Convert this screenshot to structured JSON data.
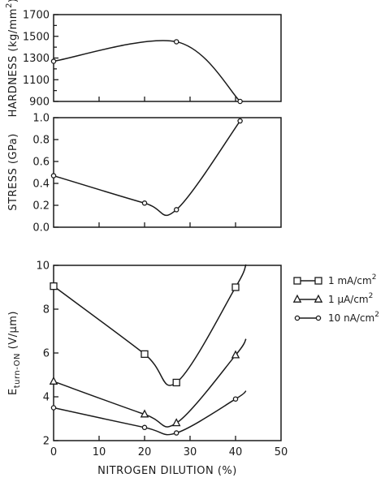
{
  "chart_data": [
    {
      "type": "line",
      "ylabel": "HARDNESS (kg/mm",
      "ylabel_sup": "2",
      "ylabel_close": ")",
      "ylim": [
        900,
        1700
      ],
      "yticks": [
        "900",
        "1100",
        "1300",
        "1500",
        "1700"
      ],
      "ytick_values": [
        900,
        1100,
        1300,
        1500,
        1700
      ],
      "xlim": [
        0,
        50
      ],
      "series": [
        {
          "marker": "circle",
          "points": [
            [
              0,
              1270
            ],
            [
              27,
              1450
            ],
            [
              41,
              900
            ]
          ]
        }
      ]
    },
    {
      "type": "line",
      "ylabel": "STRESS (GPa)",
      "ylim": [
        0.0,
        1.0
      ],
      "yticks": [
        "0.0",
        "0.2",
        "0.4",
        "0.6",
        "0.8",
        "1.0"
      ],
      "ytick_values": [
        0.0,
        0.2,
        0.4,
        0.6,
        0.8,
        1.0
      ],
      "xlim": [
        0,
        50
      ],
      "series": [
        {
          "marker": "circle",
          "points": [
            [
              0,
              0.47
            ],
            [
              20,
              0.22
            ],
            [
              27,
              0.16
            ],
            [
              41,
              0.97
            ]
          ]
        }
      ]
    },
    {
      "type": "line",
      "ylabel": "E",
      "ylabel_sub": "turn-ON",
      "ylabel_units": " (V/µm)",
      "xlabel": "NITROGEN DILUTION (%)",
      "ylim": [
        2,
        10
      ],
      "yticks": [
        "2",
        "4",
        "6",
        "8",
        "10"
      ],
      "ytick_values": [
        2,
        4,
        6,
        8,
        10
      ],
      "xlim": [
        0,
        50
      ],
      "xticks": [
        "0",
        "10",
        "20",
        "30",
        "40",
        "50"
      ],
      "xtick_values": [
        0,
        10,
        20,
        30,
        40,
        50
      ],
      "series": [
        {
          "marker": "square",
          "points": [
            [
              0,
              9.05
            ],
            [
              20,
              5.95
            ],
            [
              27,
              4.65
            ],
            [
              40,
              9.0
            ]
          ],
          "legend": {
            "main": "1 mA/cm",
            "sup": "2"
          }
        },
        {
          "marker": "triangle",
          "points": [
            [
              0,
              4.7
            ],
            [
              20,
              3.2
            ],
            [
              27,
              2.8
            ],
            [
              40,
              5.9
            ]
          ],
          "legend": {
            "main": "1 µA/cm",
            "sup": "2"
          }
        },
        {
          "marker": "circle",
          "points": [
            [
              0,
              3.5
            ],
            [
              20,
              2.6
            ],
            [
              27,
              2.35
            ],
            [
              40,
              3.9
            ]
          ],
          "legend": {
            "main": "10 nA/cm",
            "sup": "2"
          }
        }
      ]
    }
  ]
}
